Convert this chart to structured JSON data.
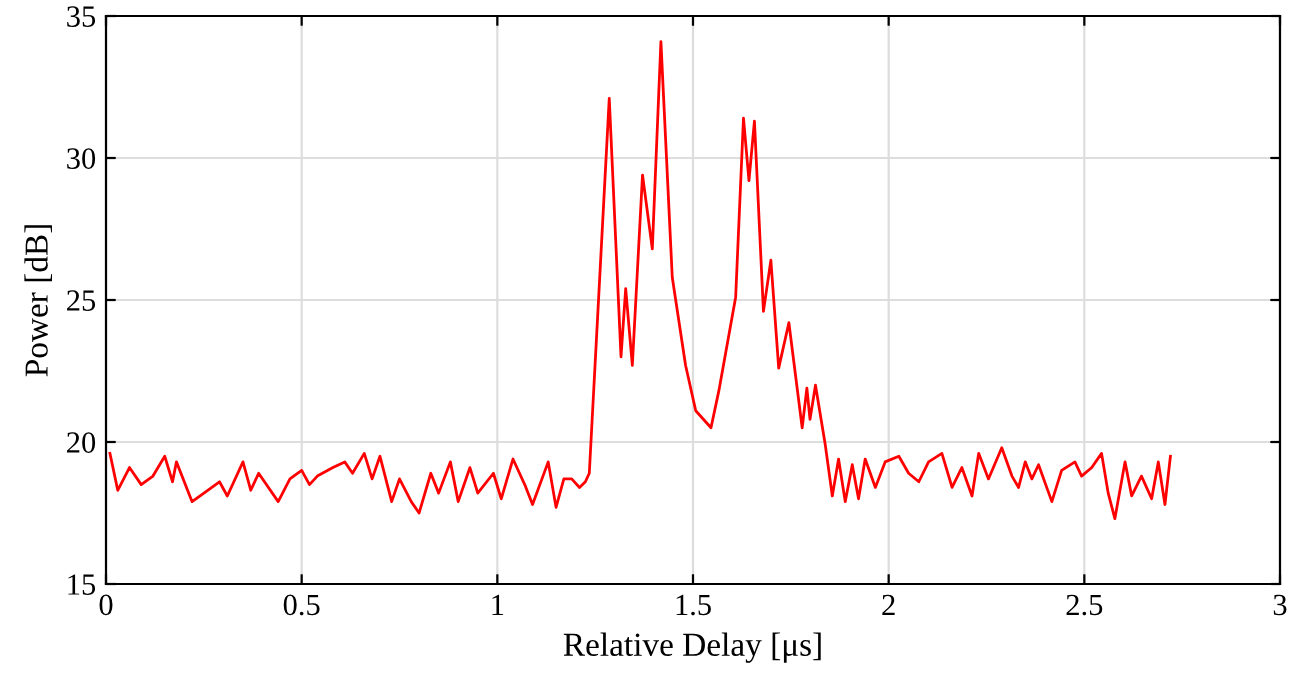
{
  "chart_data": {
    "type": "line",
    "xlabel": "Relative Delay [μs]",
    "ylabel": "Power [dB]",
    "xlim": [
      0,
      3
    ],
    "ylim": [
      15,
      35
    ],
    "xticks": [
      0,
      0.5,
      1,
      1.5,
      2,
      2.5,
      3
    ],
    "yticks": [
      15,
      20,
      25,
      30,
      35
    ],
    "grid": true,
    "marker": "none",
    "line_style": "solid",
    "series": [
      {
        "color": "#ff0000",
        "x": [
          0.01,
          0.03,
          0.06,
          0.09,
          0.12,
          0.15,
          0.17,
          0.18,
          0.22,
          0.26,
          0.29,
          0.31,
          0.35,
          0.37,
          0.39,
          0.44,
          0.47,
          0.5,
          0.52,
          0.54,
          0.58,
          0.61,
          0.63,
          0.66,
          0.68,
          0.7,
          0.73,
          0.75,
          0.78,
          0.8,
          0.83,
          0.85,
          0.88,
          0.9,
          0.93,
          0.95,
          0.99,
          1.01,
          1.04,
          1.07,
          1.09,
          1.13,
          1.15,
          1.17,
          1.19,
          1.21,
          1.225,
          1.235,
          1.286,
          1.316,
          1.328,
          1.345,
          1.371,
          1.396,
          1.418,
          1.447,
          1.481,
          1.507,
          1.546,
          1.566,
          1.609,
          1.629,
          1.643,
          1.657,
          1.68,
          1.699,
          1.719,
          1.745,
          1.779,
          1.791,
          1.799,
          1.813,
          1.838,
          1.856,
          1.872,
          1.889,
          1.907,
          1.923,
          1.94,
          1.966,
          1.991,
          2.026,
          2.051,
          2.077,
          2.102,
          2.136,
          2.162,
          2.187,
          2.213,
          2.23,
          2.255,
          2.289,
          2.315,
          2.332,
          2.349,
          2.366,
          2.383,
          2.417,
          2.442,
          2.476,
          2.493,
          2.519,
          2.544,
          2.561,
          2.578,
          2.604,
          2.621,
          2.646,
          2.672,
          2.689,
          2.706,
          2.72
        ],
        "values": [
          19.6,
          18.3,
          19.1,
          18.5,
          18.8,
          19.5,
          18.6,
          19.3,
          17.9,
          18.3,
          18.6,
          18.1,
          19.3,
          18.3,
          18.9,
          17.9,
          18.7,
          19.0,
          18.5,
          18.8,
          19.1,
          19.3,
          18.9,
          19.6,
          18.7,
          19.5,
          17.9,
          18.7,
          17.9,
          17.5,
          18.9,
          18.2,
          19.3,
          17.9,
          19.1,
          18.2,
          18.9,
          18.0,
          19.4,
          18.5,
          17.8,
          19.3,
          17.7,
          18.7,
          18.7,
          18.4,
          18.6,
          18.9,
          32.1,
          23.0,
          25.4,
          22.7,
          29.4,
          26.8,
          34.1,
          25.8,
          22.7,
          21.1,
          20.5,
          21.8,
          25.1,
          31.4,
          29.2,
          31.3,
          24.6,
          26.4,
          22.6,
          24.2,
          20.5,
          21.9,
          20.8,
          22.0,
          19.9,
          18.1,
          19.4,
          17.9,
          19.2,
          18.0,
          19.4,
          18.4,
          19.3,
          19.5,
          18.9,
          18.6,
          19.3,
          19.6,
          18.4,
          19.1,
          18.1,
          19.6,
          18.7,
          19.8,
          18.8,
          18.4,
          19.3,
          18.7,
          19.2,
          17.9,
          19.0,
          19.3,
          18.8,
          19.1,
          19.6,
          18.2,
          17.3,
          19.3,
          18.1,
          18.8,
          18.0,
          19.3,
          17.8,
          19.5
        ]
      }
    ]
  }
}
